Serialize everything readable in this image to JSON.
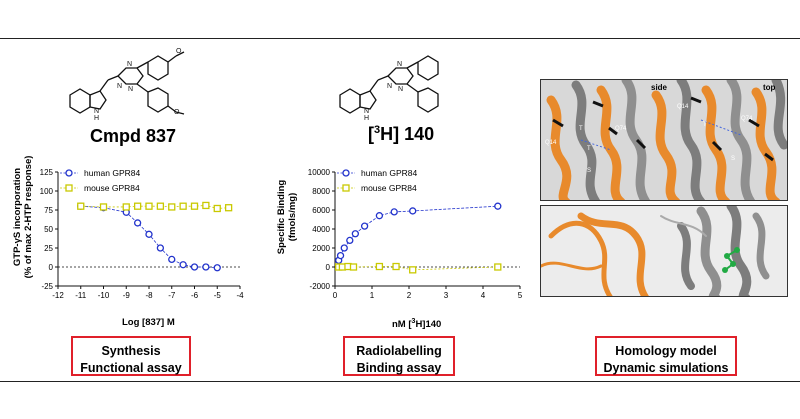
{
  "compounds": {
    "left_title": "Cmpd 837",
    "middle_title_pre": "[",
    "middle_title_sup": "3",
    "middle_title_post": "H] 140"
  },
  "chart_data": [
    {
      "type": "scatter",
      "title": "",
      "xlabel": "Log [837] M",
      "ylabel": "GTP-γS incorporation (% of max 2-HTP response)",
      "ylabel_line1": "GTP-γS incorporation",
      "ylabel_line2": "(% of max 2-HTP response)",
      "xlim": [
        -12,
        -4
      ],
      "ylim": [
        -25,
        125
      ],
      "xticks": [
        "-12",
        "-11",
        "-10",
        "-9",
        "-8",
        "-7",
        "-6",
        "-5",
        "-4"
      ],
      "yticks": [
        "125",
        "100",
        "75",
        "50",
        "25",
        "0",
        "-25"
      ],
      "series": [
        {
          "name": "human GPR84",
          "marker": "circle",
          "color": "#2233cc",
          "x": [
            -11,
            -10,
            -9,
            -8.5,
            -8,
            -7.5,
            -7,
            -6.5,
            -6,
            -5.5,
            -5
          ],
          "y": [
            80,
            78,
            72,
            58,
            43,
            25,
            10,
            3,
            0,
            0,
            -1
          ]
        },
        {
          "name": "mouse GPR84",
          "marker": "square",
          "color": "#c9c900",
          "x": [
            -11,
            -10,
            -9,
            -8.5,
            -8,
            -7.5,
            -7,
            -6.5,
            -6,
            -5.5,
            -5,
            -4.5
          ],
          "y": [
            80,
            79,
            79,
            80,
            80,
            80,
            79,
            80,
            80,
            81,
            77,
            78
          ]
        }
      ]
    },
    {
      "type": "scatter",
      "title": "",
      "xlabel_pre": "nM [",
      "xlabel_sup": "3",
      "xlabel_post": "H]140",
      "ylabel_line1": "Specific Binding",
      "ylabel_line2": "(fmols/mg)",
      "xlim": [
        0,
        5
      ],
      "ylim": [
        -2000,
        10000
      ],
      "xticks": [
        "0",
        "1",
        "2",
        "3",
        "4",
        "5"
      ],
      "yticks": [
        "10000",
        "8000",
        "6000",
        "4000",
        "2000",
        "0",
        "-2000"
      ],
      "series": [
        {
          "name": "human GPR84",
          "marker": "circle",
          "color": "#2233cc",
          "x": [
            0.1,
            0.15,
            0.25,
            0.4,
            0.55,
            0.8,
            1.2,
            1.6,
            2.1,
            4.4
          ],
          "y": [
            700,
            1200,
            2000,
            2800,
            3500,
            4300,
            5400,
            5800,
            5900,
            6400
          ]
        },
        {
          "name": "mouse GPR84",
          "marker": "square",
          "color": "#c9c900",
          "x": [
            0.1,
            0.2,
            0.35,
            0.5,
            1.2,
            1.65,
            2.1,
            4.4
          ],
          "y": [
            0,
            0,
            50,
            0,
            50,
            50,
            -300,
            0
          ]
        }
      ]
    }
  ],
  "md_labels": {
    "side": "side",
    "top": "top",
    "r1": "Q14",
    "r2": "T",
    "r3": "Q74",
    "r4": "T",
    "r5": "S",
    "r6": "Q14",
    "r7": "T",
    "r8": "Q74",
    "r9": "S"
  },
  "footer_labels": {
    "left": [
      "Synthesis",
      "Functional assay"
    ],
    "middle": [
      "Radiolabelling",
      "Binding assay"
    ],
    "right": [
      "Homology model",
      "Dynamic simulations"
    ]
  },
  "colors": {
    "human": "#2233cc",
    "mouse": "#c9c900",
    "box_border": "#e0202a",
    "helix_orange": "#e88a2c",
    "helix_grey": "#8a8a8a"
  }
}
